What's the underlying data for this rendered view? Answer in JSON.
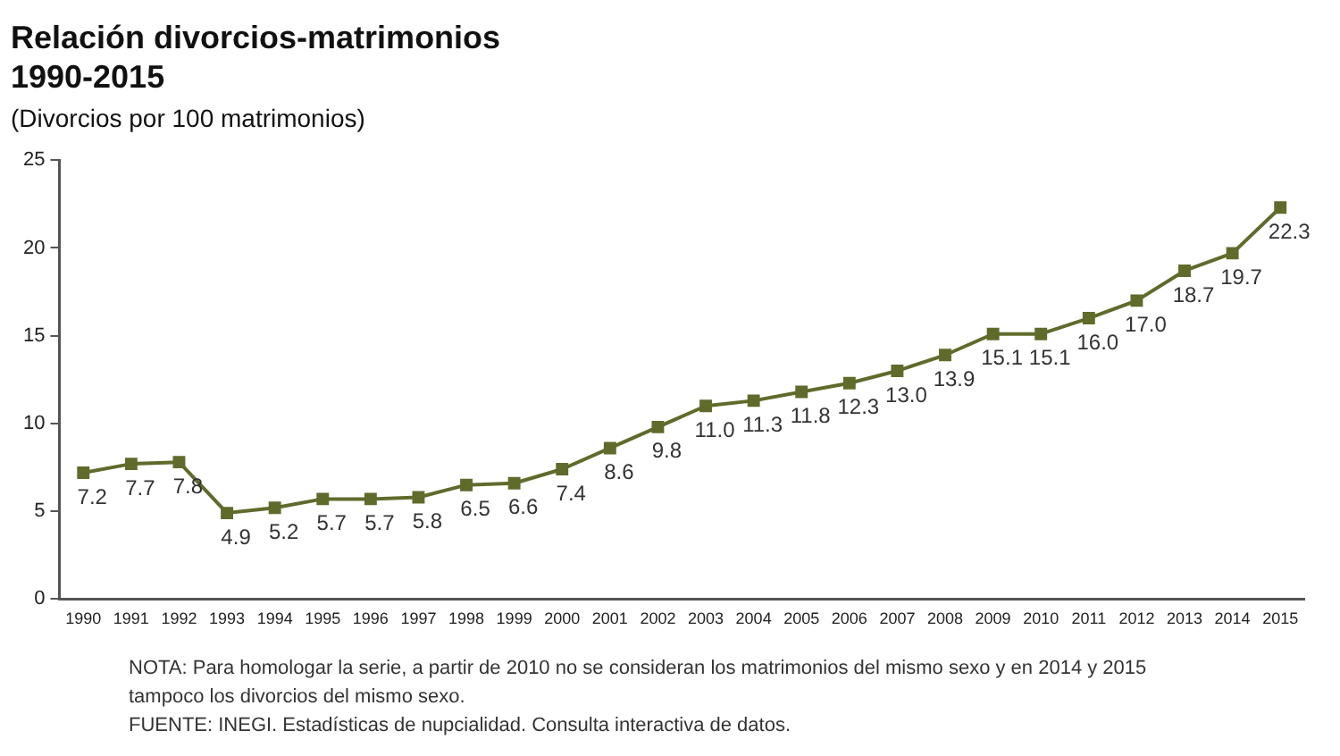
{
  "chart_data": {
    "type": "line",
    "title": "Relación divorcios-matrimonios 1990-2015",
    "subtitle": "(Divorcios por 100 matrimonios)",
    "categories": [
      "1990",
      "1991",
      "1992",
      "1993",
      "1994",
      "1995",
      "1996",
      "1997",
      "1998",
      "1999",
      "2000",
      "2001",
      "2002",
      "2003",
      "2004",
      "2005",
      "2006",
      "2007",
      "2008",
      "2009",
      "2010",
      "2011",
      "2012",
      "2013",
      "2014",
      "2015"
    ],
    "series": [
      {
        "color": "#5f6b2a",
        "values": [
          7.2,
          7.7,
          7.8,
          4.9,
          5.2,
          5.7,
          5.7,
          5.8,
          6.5,
          6.6,
          7.4,
          8.6,
          9.8,
          11.0,
          11.3,
          11.8,
          12.3,
          13.0,
          13.9,
          15.1,
          15.1,
          16.0,
          17.0,
          18.7,
          19.7,
          22.3
        ],
        "value_labels": [
          "7.2",
          "7.7",
          "7.8",
          "4.9",
          "5.2",
          "5.7",
          "5.7",
          "5.8",
          "6.5",
          "6.6",
          "7.4",
          "8.6",
          "9.8",
          "11.0",
          "11.3",
          "11.8",
          "12.3",
          "13.0",
          "13.9",
          "15.1",
          "15.1",
          "16.0",
          "17.0",
          "18.7",
          "19.7",
          "22.3"
        ]
      }
    ],
    "ylim": [
      0,
      25
    ],
    "yticks": [
      0,
      5,
      10,
      15,
      20,
      25
    ],
    "grid": false,
    "legend": false,
    "marker": "square",
    "line_style": "solid",
    "annotations": [
      "NOTA: Para homologar la serie, a partir de 2010 no se consideran los matrimonios del mismo sexo y en 2014 y 2015 tampoco los divorcios del mismo sexo.",
      "FUENTE: INEGI. Estadísticas de nupcialidad. Consulta interactiva de datos."
    ]
  }
}
